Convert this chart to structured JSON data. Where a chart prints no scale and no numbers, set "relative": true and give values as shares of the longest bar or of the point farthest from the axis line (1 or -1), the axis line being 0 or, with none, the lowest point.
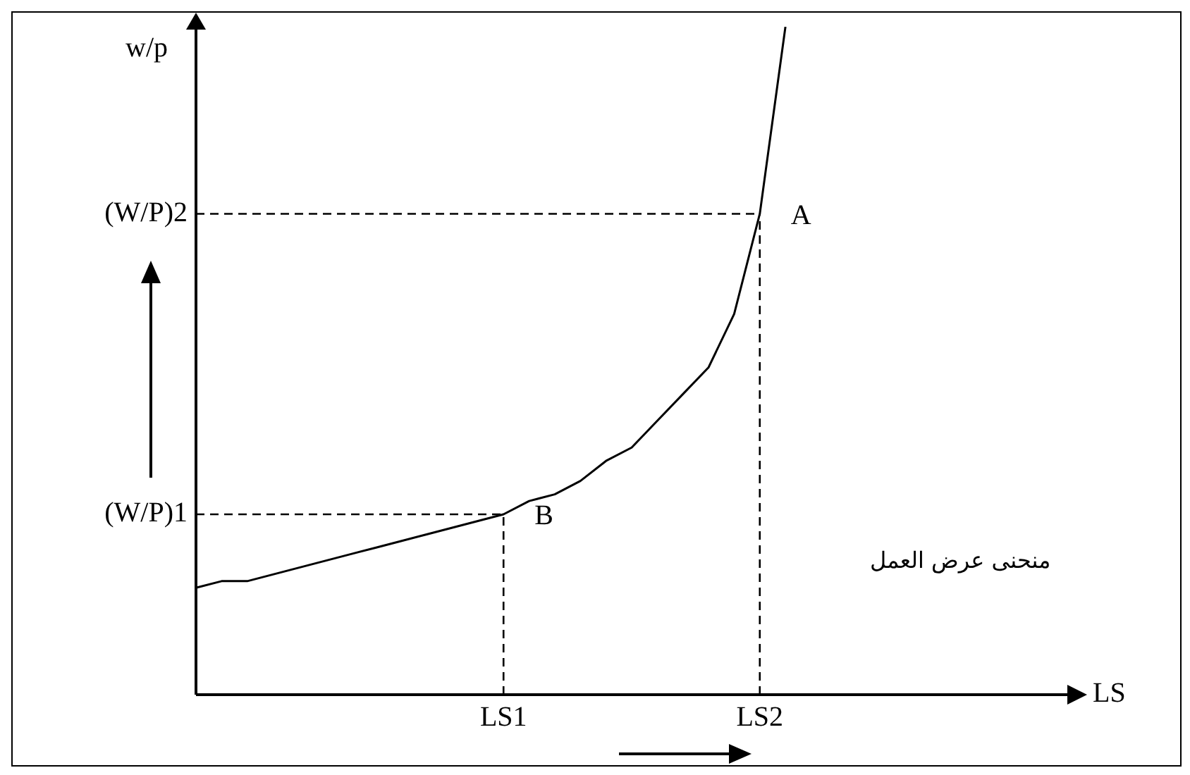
{
  "chart_data": {
    "type": "line",
    "xlabel": "LS",
    "ylabel": "w/p",
    "relative": true,
    "marker": "none",
    "line_style": "solid",
    "categories": [
      null,
      null,
      null,
      null,
      null,
      null,
      null,
      null,
      null,
      null,
      null,
      null,
      "LS1",
      null,
      null,
      null,
      null,
      null,
      null,
      null,
      null,
      null,
      "LS2",
      null,
      null,
      null,
      null,
      null,
      null,
      null,
      null,
      null,
      null,
      null,
      null
    ],
    "series": [
      {
        "color": "#000000",
        "values": [
          0.16,
          0.17,
          0.17,
          0.18,
          0.19,
          0.2,
          0.21,
          0.22,
          0.23,
          0.24,
          0.25,
          0.26,
          0.27,
          0.29,
          0.3,
          0.32,
          0.35,
          0.37,
          0.41,
          0.45,
          0.49,
          0.57,
          0.72,
          1,
          null,
          null,
          null,
          null,
          null,
          null,
          null,
          null,
          null,
          null,
          null
        ]
      }
    ],
    "ref_lines": [
      {
        "axis": "y",
        "value": 0.27,
        "label": "(W/P)1",
        "line_style": "dashed",
        "color": "#000000"
      },
      {
        "axis": "y",
        "value": 0.72,
        "label": "(W/P)2",
        "line_style": "dashed",
        "color": "#000000"
      },
      {
        "axis": "x",
        "value": "LS1",
        "line_style": "dashed",
        "color": "#000000"
      },
      {
        "axis": "x",
        "value": "LS2",
        "line_style": "dashed",
        "color": "#000000"
      }
    ],
    "annotations": [
      {
        "text": "A",
        "x": "LS2",
        "y": 0.72
      },
      {
        "text": "B",
        "x": "LS1",
        "y": 0.27
      },
      "منحنى عرض العمل"
    ]
  }
}
